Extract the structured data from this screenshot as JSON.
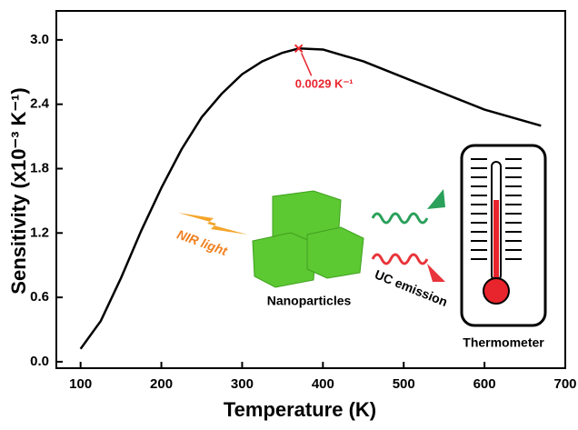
{
  "chart_data": {
    "type": "line",
    "x_label": "Temperature (K)",
    "y_label": "Sensitivity (x10⁻³ K⁻¹)",
    "x": [
      100,
      125,
      150,
      175,
      200,
      225,
      250,
      275,
      300,
      325,
      350,
      370,
      400,
      450,
      500,
      550,
      600,
      670
    ],
    "series": [
      {
        "color": "#000000",
        "values": [
          0.12,
          0.38,
          0.78,
          1.22,
          1.62,
          1.98,
          2.28,
          2.5,
          2.68,
          2.8,
          2.88,
          2.92,
          2.91,
          2.8,
          2.65,
          2.5,
          2.35,
          2.2
        ]
      }
    ],
    "peak": {
      "x": 370,
      "y": 2.92,
      "label": "0.0029 K⁻¹",
      "color": "#e8242c"
    },
    "xlim": [
      70,
      700
    ],
    "xticks": [
      100,
      200,
      300,
      400,
      500,
      600,
      700
    ],
    "ylim": [
      -0.06,
      3.27
    ],
    "yticks": [
      {
        "value": 0,
        "label": "0.0"
      },
      0.6,
      1.2,
      1.8,
      2.4,
      {
        "value": 3,
        "label": "3.0"
      }
    ],
    "illustration": {
      "light": "NIR light",
      "particles": "Nanoparticles",
      "emission": "UC emission",
      "thermometer": "Thermometer"
    }
  }
}
